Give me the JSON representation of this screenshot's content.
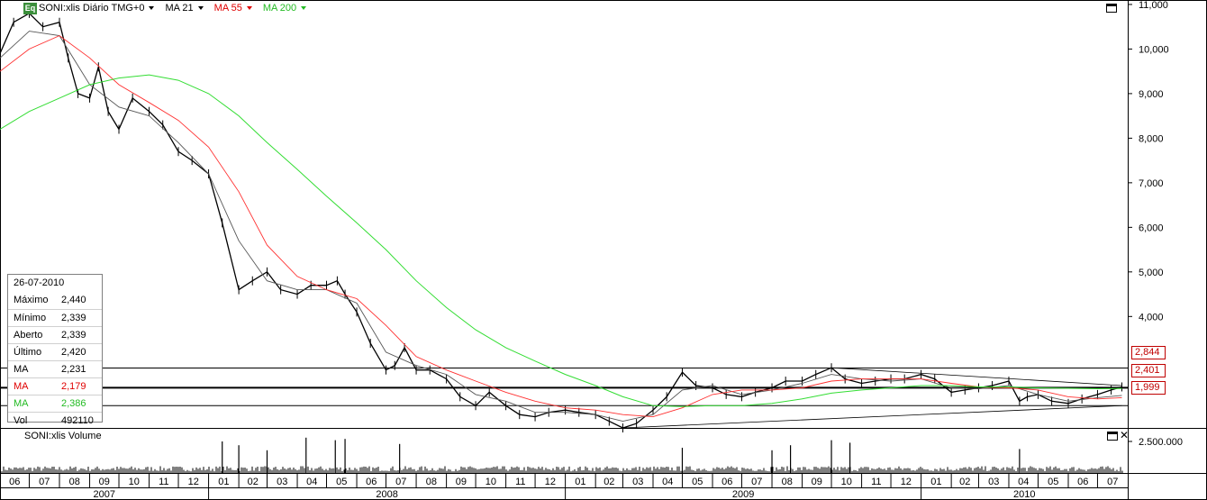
{
  "toolbar": {
    "badge": "Eq",
    "symbol_label": "SONI:xlis Diário TMG+0",
    "ma1_label": "MA 21",
    "ma2_label": "MA 55",
    "ma3_label": "MA 200"
  },
  "colors": {
    "price": "#000000",
    "ma21": "#555555",
    "ma55": "#ff3030",
    "ma200": "#33dd33",
    "level": "#c00000",
    "grid": "#000000"
  },
  "info_box": {
    "date": "26-07-2010",
    "rows": [
      {
        "label": "Máximo",
        "value": "2,440",
        "color": "#000000"
      },
      {
        "label": "Mínimo",
        "value": "2,339",
        "color": "#000000"
      },
      {
        "label": "Aberto",
        "value": "2,339",
        "color": "#000000"
      },
      {
        "label": "Último",
        "value": "2,420",
        "color": "#000000"
      },
      {
        "label": "MA",
        "value": "2,231",
        "color": "#000000"
      },
      {
        "label": "MA",
        "value": "2,179",
        "color": "#e00000"
      },
      {
        "label": "MA",
        "value": "2,386",
        "color": "#22bb22"
      },
      {
        "label": "Vol",
        "value": "492110",
        "color": "#000000"
      }
    ]
  },
  "volume_panel": {
    "title": "SONI:xlis Volume",
    "ytick": "2.500.000"
  },
  "price_badges": [
    "2,844",
    "2,401",
    "1,999"
  ],
  "chart_data": {
    "type": "line",
    "title": "SONI:xlis Diário TMG+0",
    "y_ticks": [
      "11,000",
      "10,000",
      "9,000",
      "8,000",
      "7,000",
      "6,000",
      "5,000",
      "4,000"
    ],
    "ylim": [
      1.5,
      11.1
    ],
    "x_months": [
      "06",
      "07",
      "08",
      "09",
      "10",
      "11",
      "12",
      "01",
      "02",
      "03",
      "04",
      "05",
      "06",
      "07",
      "08",
      "09",
      "10",
      "11",
      "12",
      "01",
      "02",
      "03",
      "04",
      "05",
      "06",
      "07",
      "08",
      "09",
      "10",
      "11",
      "12",
      "01",
      "02",
      "03",
      "04",
      "05",
      "06",
      "07"
    ],
    "x_years": [
      "2007",
      "2008",
      "2009",
      "2010"
    ],
    "horizontal_levels": [
      2.844,
      2.401,
      1.999
    ],
    "series": [
      {
        "name": "SONI:xlis",
        "points": [
          [
            "2007-06-01",
            9.9
          ],
          [
            "2007-06-15",
            10.6
          ],
          [
            "2007-07-01",
            10.8
          ],
          [
            "2007-07-15",
            10.5
          ],
          [
            "2007-08-01",
            10.6
          ],
          [
            "2007-08-10",
            9.8
          ],
          [
            "2007-08-20",
            9.0
          ],
          [
            "2007-09-01",
            8.9
          ],
          [
            "2007-09-10",
            9.6
          ],
          [
            "2007-09-20",
            8.6
          ],
          [
            "2007-10-01",
            8.2
          ],
          [
            "2007-10-15",
            8.9
          ],
          [
            "2007-11-01",
            8.6
          ],
          [
            "2007-11-15",
            8.3
          ],
          [
            "2007-12-01",
            7.7
          ],
          [
            "2007-12-15",
            7.5
          ],
          [
            "2008-01-01",
            7.2
          ],
          [
            "2008-01-15",
            6.1
          ],
          [
            "2008-02-01",
            4.6
          ],
          [
            "2008-02-15",
            4.8
          ],
          [
            "2008-03-01",
            5.0
          ],
          [
            "2008-03-15",
            4.6
          ],
          [
            "2008-04-01",
            4.5
          ],
          [
            "2008-04-15",
            4.7
          ],
          [
            "2008-05-01",
            4.7
          ],
          [
            "2008-05-12",
            4.8
          ],
          [
            "2008-05-20",
            4.5
          ],
          [
            "2008-06-01",
            4.1
          ],
          [
            "2008-06-15",
            3.4
          ],
          [
            "2008-07-01",
            2.8
          ],
          [
            "2008-07-10",
            2.9
          ],
          [
            "2008-07-20",
            3.3
          ],
          [
            "2008-08-01",
            2.8
          ],
          [
            "2008-08-15",
            2.8
          ],
          [
            "2008-09-01",
            2.6
          ],
          [
            "2008-09-15",
            2.2
          ],
          [
            "2008-10-01",
            2.0
          ],
          [
            "2008-10-15",
            2.3
          ],
          [
            "2008-11-01",
            2.0
          ],
          [
            "2008-11-15",
            1.8
          ],
          [
            "2008-12-01",
            1.75
          ],
          [
            "2008-12-15",
            1.85
          ],
          [
            "2009-01-01",
            1.9
          ],
          [
            "2009-01-15",
            1.85
          ],
          [
            "2009-02-01",
            1.8
          ],
          [
            "2009-02-15",
            1.65
          ],
          [
            "2009-03-01",
            1.5
          ],
          [
            "2009-03-15",
            1.6
          ],
          [
            "2009-04-01",
            1.9
          ],
          [
            "2009-04-15",
            2.2
          ],
          [
            "2009-05-01",
            2.75
          ],
          [
            "2009-05-15",
            2.45
          ],
          [
            "2009-06-01",
            2.4
          ],
          [
            "2009-06-15",
            2.25
          ],
          [
            "2009-07-01",
            2.2
          ],
          [
            "2009-07-15",
            2.3
          ],
          [
            "2009-08-01",
            2.4
          ],
          [
            "2009-08-15",
            2.55
          ],
          [
            "2009-09-01",
            2.55
          ],
          [
            "2009-09-15",
            2.7
          ],
          [
            "2009-10-01",
            2.85
          ],
          [
            "2009-10-15",
            2.6
          ],
          [
            "2009-11-01",
            2.5
          ],
          [
            "2009-11-15",
            2.55
          ],
          [
            "2009-12-01",
            2.6
          ],
          [
            "2009-12-15",
            2.6
          ],
          [
            "2010-01-01",
            2.7
          ],
          [
            "2010-01-15",
            2.6
          ],
          [
            "2010-02-01",
            2.3
          ],
          [
            "2010-02-15",
            2.35
          ],
          [
            "2010-03-01",
            2.4
          ],
          [
            "2010-03-15",
            2.45
          ],
          [
            "2010-04-01",
            2.55
          ],
          [
            "2010-04-12",
            2.1
          ],
          [
            "2010-04-20",
            2.2
          ],
          [
            "2010-05-01",
            2.25
          ],
          [
            "2010-05-15",
            2.1
          ],
          [
            "2010-06-01",
            2.05
          ],
          [
            "2010-06-15",
            2.15
          ],
          [
            "2010-07-01",
            2.25
          ],
          [
            "2010-07-15",
            2.35
          ],
          [
            "2010-07-26",
            2.42
          ]
        ]
      },
      {
        "name": "MA 21",
        "points": [
          [
            "2007-06-01",
            9.8
          ],
          [
            "2007-07-01",
            10.4
          ],
          [
            "2007-08-01",
            10.3
          ],
          [
            "2007-09-01",
            9.2
          ],
          [
            "2007-10-01",
            8.7
          ],
          [
            "2007-11-01",
            8.5
          ],
          [
            "2007-12-01",
            7.9
          ],
          [
            "2008-01-01",
            7.2
          ],
          [
            "2008-02-01",
            5.7
          ],
          [
            "2008-03-01",
            4.8
          ],
          [
            "2008-04-01",
            4.6
          ],
          [
            "2008-05-01",
            4.6
          ],
          [
            "2008-06-01",
            4.3
          ],
          [
            "2008-07-01",
            3.2
          ],
          [
            "2008-08-01",
            2.9
          ],
          [
            "2008-09-01",
            2.7
          ],
          [
            "2008-10-01",
            2.25
          ],
          [
            "2008-11-01",
            2.1
          ],
          [
            "2008-12-01",
            1.85
          ],
          [
            "2009-01-01",
            1.85
          ],
          [
            "2009-02-01",
            1.8
          ],
          [
            "2009-03-01",
            1.65
          ],
          [
            "2009-04-01",
            1.8
          ],
          [
            "2009-05-01",
            2.35
          ],
          [
            "2009-06-01",
            2.45
          ],
          [
            "2009-07-01",
            2.25
          ],
          [
            "2009-08-01",
            2.35
          ],
          [
            "2009-09-01",
            2.5
          ],
          [
            "2009-10-01",
            2.7
          ],
          [
            "2009-11-01",
            2.6
          ],
          [
            "2009-12-01",
            2.55
          ],
          [
            "2010-01-01",
            2.6
          ],
          [
            "2010-02-01",
            2.4
          ],
          [
            "2010-03-01",
            2.38
          ],
          [
            "2010-04-01",
            2.45
          ],
          [
            "2010-05-01",
            2.25
          ],
          [
            "2010-06-01",
            2.1
          ],
          [
            "2010-07-01",
            2.18
          ],
          [
            "2010-07-26",
            2.23
          ]
        ]
      },
      {
        "name": "MA 55",
        "points": [
          [
            "2007-06-01",
            9.5
          ],
          [
            "2007-07-01",
            10.0
          ],
          [
            "2007-08-01",
            10.3
          ],
          [
            "2007-09-01",
            9.8
          ],
          [
            "2007-10-01",
            9.2
          ],
          [
            "2007-11-01",
            8.8
          ],
          [
            "2007-12-01",
            8.4
          ],
          [
            "2008-01-01",
            7.8
          ],
          [
            "2008-02-01",
            6.8
          ],
          [
            "2008-03-01",
            5.6
          ],
          [
            "2008-04-01",
            4.9
          ],
          [
            "2008-05-01",
            4.6
          ],
          [
            "2008-06-01",
            4.4
          ],
          [
            "2008-07-01",
            3.8
          ],
          [
            "2008-08-01",
            3.1
          ],
          [
            "2008-09-01",
            2.8
          ],
          [
            "2008-10-01",
            2.55
          ],
          [
            "2008-11-01",
            2.3
          ],
          [
            "2008-12-01",
            2.1
          ],
          [
            "2009-01-01",
            1.95
          ],
          [
            "2009-02-01",
            1.9
          ],
          [
            "2009-03-01",
            1.8
          ],
          [
            "2009-04-01",
            1.75
          ],
          [
            "2009-05-01",
            1.95
          ],
          [
            "2009-06-01",
            2.25
          ],
          [
            "2009-07-01",
            2.35
          ],
          [
            "2009-08-01",
            2.35
          ],
          [
            "2009-09-01",
            2.4
          ],
          [
            "2009-10-01",
            2.55
          ],
          [
            "2009-11-01",
            2.6
          ],
          [
            "2009-12-01",
            2.6
          ],
          [
            "2010-01-01",
            2.6
          ],
          [
            "2010-02-01",
            2.5
          ],
          [
            "2010-03-01",
            2.42
          ],
          [
            "2010-04-01",
            2.4
          ],
          [
            "2010-05-01",
            2.35
          ],
          [
            "2010-06-01",
            2.2
          ],
          [
            "2010-07-01",
            2.15
          ],
          [
            "2010-07-26",
            2.18
          ]
        ]
      },
      {
        "name": "MA 200",
        "points": [
          [
            "2007-06-01",
            8.2
          ],
          [
            "2007-07-01",
            8.6
          ],
          [
            "2007-08-01",
            8.9
          ],
          [
            "2007-09-01",
            9.2
          ],
          [
            "2007-10-01",
            9.35
          ],
          [
            "2007-11-01",
            9.42
          ],
          [
            "2007-12-01",
            9.3
          ],
          [
            "2008-01-01",
            9.0
          ],
          [
            "2008-02-01",
            8.5
          ],
          [
            "2008-03-01",
            7.9
          ],
          [
            "2008-04-01",
            7.3
          ],
          [
            "2008-05-01",
            6.7
          ],
          [
            "2008-06-01",
            6.1
          ],
          [
            "2008-07-01",
            5.5
          ],
          [
            "2008-08-01",
            4.8
          ],
          [
            "2008-09-01",
            4.2
          ],
          [
            "2008-10-01",
            3.7
          ],
          [
            "2008-11-01",
            3.3
          ],
          [
            "2008-12-01",
            3.0
          ],
          [
            "2009-01-01",
            2.7
          ],
          [
            "2009-02-01",
            2.45
          ],
          [
            "2009-03-01",
            2.2
          ],
          [
            "2009-04-01",
            2.0
          ],
          [
            "2009-05-01",
            1.98
          ],
          [
            "2009-06-01",
            2.0
          ],
          [
            "2009-07-01",
            2.0
          ],
          [
            "2009-08-01",
            2.05
          ],
          [
            "2009-09-01",
            2.15
          ],
          [
            "2009-10-01",
            2.28
          ],
          [
            "2009-11-01",
            2.35
          ],
          [
            "2009-12-01",
            2.4
          ],
          [
            "2010-01-01",
            2.45
          ],
          [
            "2010-02-01",
            2.45
          ],
          [
            "2010-03-01",
            2.42
          ],
          [
            "2010-04-01",
            2.42
          ],
          [
            "2010-05-01",
            2.4
          ],
          [
            "2010-06-01",
            2.39
          ],
          [
            "2010-07-01",
            2.38
          ],
          [
            "2010-07-26",
            2.386
          ]
        ]
      }
    ],
    "trendlines": [
      {
        "from": [
          "2009-03-01",
          1.5
        ],
        "to": [
          "2010-07-26",
          2.0
        ]
      },
      {
        "from": [
          "2009-10-01",
          2.85
        ],
        "to": [
          "2010-07-26",
          2.45
        ]
      }
    ],
    "volume": {
      "ylim": [
        0,
        3500000
      ],
      "ytick_value": 2500000,
      "peaks": [
        [
          "2008-01-15",
          2500000
        ],
        [
          "2008-02-01",
          2200000
        ],
        [
          "2008-03-01",
          1800000
        ],
        [
          "2008-05-10",
          2600000
        ],
        [
          "2008-05-20",
          2700000
        ],
        [
          "2008-04-10",
          2800000
        ],
        [
          "2008-07-15",
          2300000
        ],
        [
          "2009-05-01",
          2000000
        ],
        [
          "2009-08-01",
          1800000
        ],
        [
          "2009-08-20",
          2200000
        ],
        [
          "2009-10-01",
          2600000
        ],
        [
          "2009-10-20",
          2400000
        ],
        [
          "2010-04-12",
          1900000
        ]
      ]
    }
  }
}
